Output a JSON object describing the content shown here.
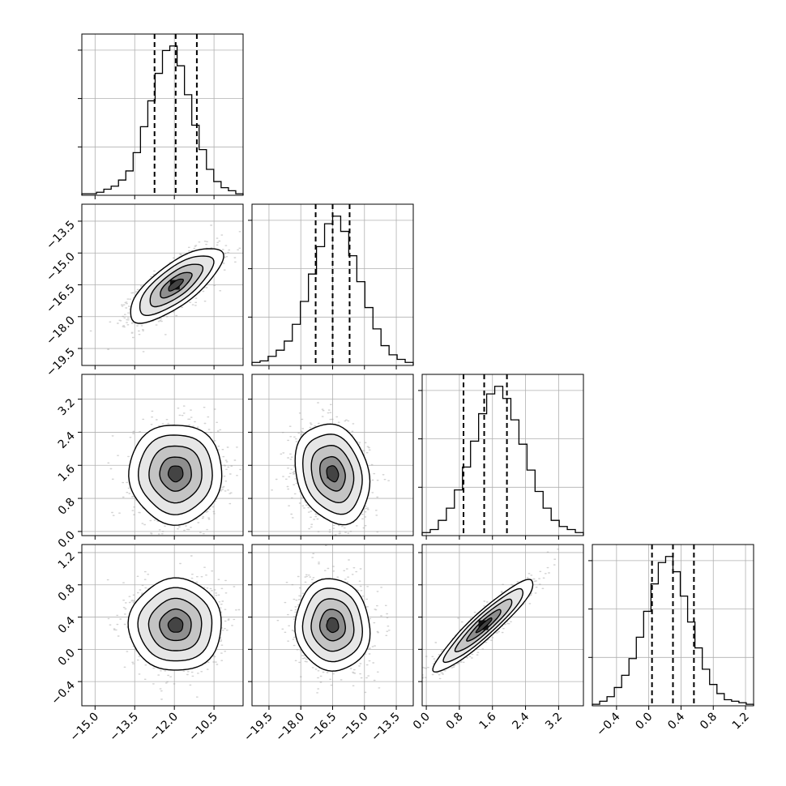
{
  "chart_data": {
    "type": "corner",
    "title": "",
    "grid": true,
    "parameters": [
      {
        "ticks": [
          -15.0,
          -13.5,
          -12.0,
          -10.5
        ],
        "tick_labels": [
          "−15.0",
          "−13.5",
          "−12.0",
          "−10.5"
        ],
        "range": [
          -15.5,
          -9.4
        ]
      },
      {
        "ticks": [
          -19.5,
          -18.0,
          -16.5,
          -15.0,
          -13.5
        ],
        "tick_labels": [
          "−19.5",
          "−18.0",
          "−16.5",
          "−15.0",
          "−13.5"
        ],
        "range": [
          -20.3,
          -12.7
        ]
      },
      {
        "ticks": [
          0.0,
          0.8,
          1.6,
          2.4,
          3.2
        ],
        "tick_labels": [
          "0.0",
          "0.8",
          "1.6",
          "2.4",
          "3.2"
        ],
        "range": [
          -0.1,
          3.8
        ]
      },
      {
        "ticks": [
          -0.4,
          0.0,
          0.4,
          0.8,
          1.2
        ],
        "tick_labels": [
          "−0.4",
          "0.0",
          "0.4",
          "0.8",
          "1.2"
        ],
        "range": [
          -0.7,
          1.3
        ]
      }
    ],
    "quantiles": [
      [
        -12.75,
        -11.95,
        -11.15
      ],
      [
        -17.3,
        -16.5,
        -15.7
      ],
      [
        0.9,
        1.4,
        1.95
      ],
      [
        0.04,
        0.3,
        0.56
      ]
    ],
    "histograms": [
      {
        "bins": [
          -15.5,
          -9.4
        ],
        "counts": [
          1,
          1,
          2,
          4,
          6,
          10,
          16,
          28,
          45,
          62,
          80,
          95,
          98,
          85,
          66,
          46,
          30,
          17,
          9,
          5,
          3,
          1
        ]
      },
      {
        "bins": [
          -20.3,
          -12.7
        ],
        "counts": [
          2,
          3,
          6,
          10,
          16,
          27,
          42,
          60,
          78,
          93,
          98,
          88,
          72,
          55,
          38,
          24,
          13,
          7,
          4,
          2
        ]
      },
      {
        "bins": [
          -0.1,
          3.8
        ],
        "counts": [
          2,
          4,
          10,
          18,
          30,
          45,
          62,
          80,
          93,
          98,
          90,
          76,
          60,
          43,
          29,
          18,
          10,
          6,
          4,
          2
        ]
      },
      {
        "bins": [
          -0.7,
          1.3
        ],
        "counts": [
          1,
          3,
          6,
          12,
          20,
          31,
          45,
          62,
          80,
          94,
          98,
          88,
          72,
          55,
          38,
          24,
          14,
          8,
          4,
          3,
          2,
          1
        ]
      }
    ],
    "pairs": [
      {
        "x_param": 0,
        "y_param": 1,
        "mean": [
          -11.95,
          -16.5
        ],
        "sd": [
          0.8,
          0.8
        ],
        "corr": 0.75
      },
      {
        "x_param": 0,
        "y_param": 2,
        "mean": [
          -11.95,
          1.4
        ],
        "sd": [
          0.8,
          0.55
        ],
        "corr": 0.0
      },
      {
        "x_param": 1,
        "y_param": 2,
        "mean": [
          -16.5,
          1.4
        ],
        "sd": [
          0.8,
          0.55
        ],
        "corr": -0.2
      },
      {
        "x_param": 0,
        "y_param": 3,
        "mean": [
          -11.95,
          0.3
        ],
        "sd": [
          0.8,
          0.26
        ],
        "corr": 0.0
      },
      {
        "x_param": 1,
        "y_param": 3,
        "mean": [
          -16.5,
          0.3
        ],
        "sd": [
          0.8,
          0.26
        ],
        "corr": -0.05
      },
      {
        "x_param": 2,
        "y_param": 3,
        "mean": [
          1.4,
          0.3
        ],
        "sd": [
          0.55,
          0.26
        ],
        "corr": 0.93
      }
    ]
  }
}
